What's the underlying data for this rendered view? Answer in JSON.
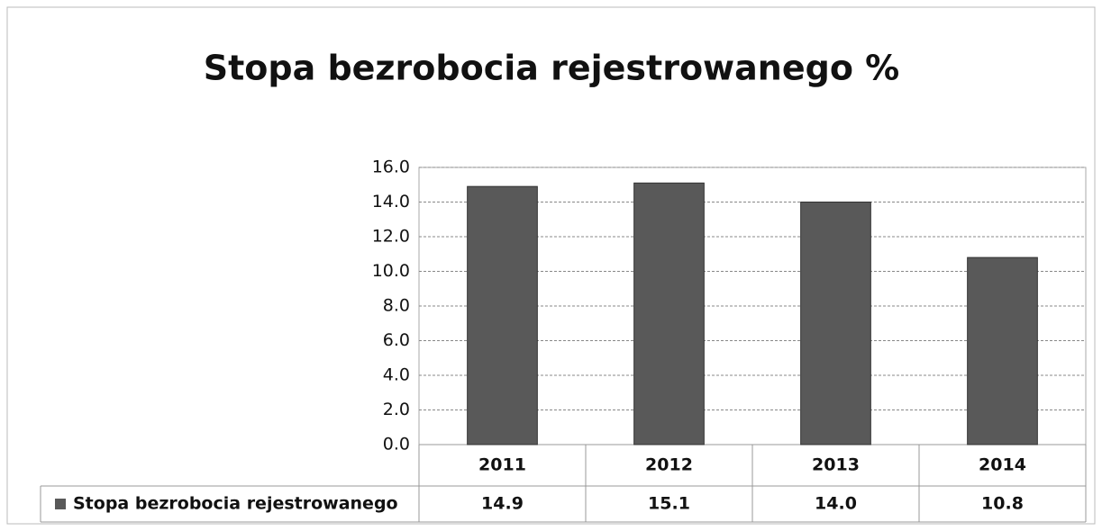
{
  "chart_data": {
    "type": "bar",
    "title": "Stopa bezrobocia rejestrowanego %",
    "categories": [
      "2011",
      "2012",
      "2013",
      "2014"
    ],
    "series": [
      {
        "name": "Stopa bezrobocia rejestrowanego",
        "color": "#595959",
        "values": [
          14.9,
          15.1,
          14.0,
          10.8
        ],
        "value_labels": [
          "14.9",
          "15.1",
          "14.0",
          "10.8"
        ]
      }
    ],
    "ylim": [
      0,
      16
    ],
    "yticks": [
      {
        "value": 0,
        "label": "0.0"
      },
      {
        "value": 2,
        "label": "2.0"
      },
      {
        "value": 4,
        "label": "4.0"
      },
      {
        "value": 6,
        "label": "6.0"
      },
      {
        "value": 8,
        "label": "8.0"
      },
      {
        "value": 10,
        "label": "10.0"
      },
      {
        "value": 12,
        "label": "12.0"
      },
      {
        "value": 14,
        "label": "14.0"
      },
      {
        "value": 16,
        "label": "16.0"
      }
    ],
    "grid": true,
    "data_table": true
  }
}
